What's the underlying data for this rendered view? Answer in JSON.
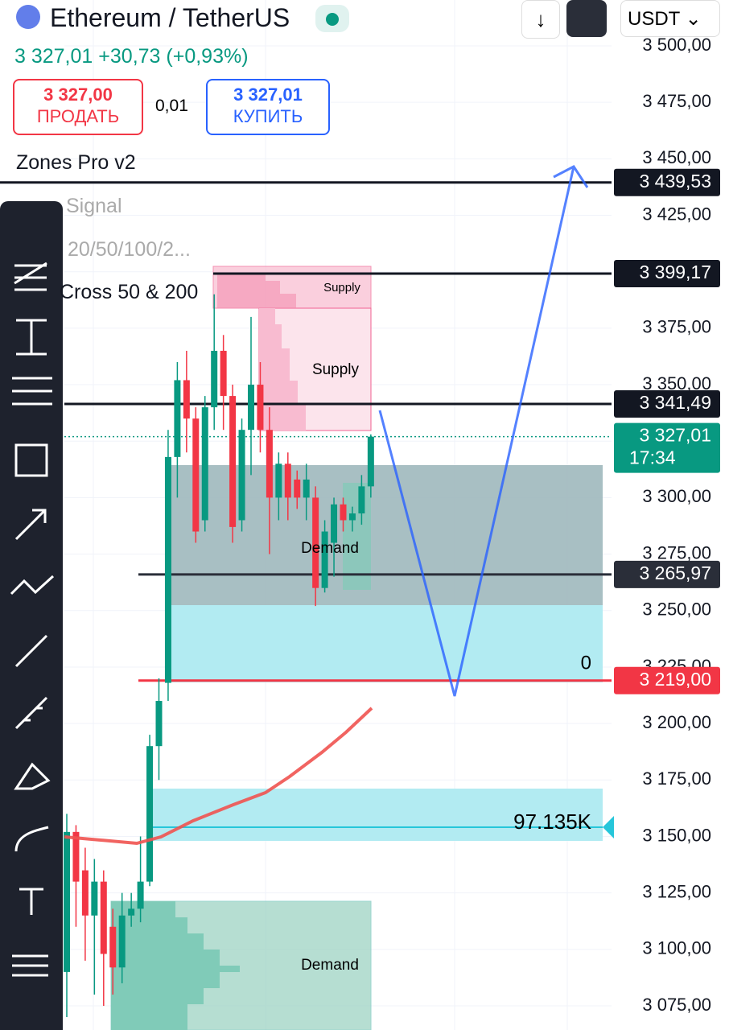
{
  "header": {
    "symbol": "Ethereum / TetherUS",
    "price": "3 327,01",
    "change": "+30,73 (+0,93%)",
    "currency": "USDT"
  },
  "trade": {
    "sell_price": "3 327,00",
    "sell_label": "ПРОДАТЬ",
    "spread": "0,01",
    "buy_price": "3 327,01",
    "buy_label": "КУПИТЬ"
  },
  "indicators": [
    "Zones Pro v2",
    "Signal",
    "20/50/100/2...",
    "Cross 50 & 200"
  ],
  "chart_data": {
    "type": "candlestick",
    "yticks": [
      {
        "value": 3500,
        "label": "3 500,00"
      },
      {
        "value": 3475,
        "label": "3 475,00"
      },
      {
        "value": 3450,
        "label": "3 450,00"
      },
      {
        "value": 3425,
        "label": "3 425,00"
      },
      {
        "value": 3400,
        "label": "3 400,00"
      },
      {
        "value": 3375,
        "label": "3 375,00"
      },
      {
        "value": 3350,
        "label": "3 350,00"
      },
      {
        "value": 3325,
        "label": "3 325,00"
      },
      {
        "value": 3300,
        "label": "3 300,00"
      },
      {
        "value": 3275,
        "label": "3 275,00"
      },
      {
        "value": 3250,
        "label": "3 250,00"
      },
      {
        "value": 3225,
        "label": "3 225,00"
      },
      {
        "value": 3200,
        "label": "3 200,00"
      },
      {
        "value": 3175,
        "label": "3 175,00"
      },
      {
        "value": 3150,
        "label": "3 150,00"
      },
      {
        "value": 3125,
        "label": "3 125,00"
      },
      {
        "value": 3100,
        "label": "3 100,00"
      },
      {
        "value": 3075,
        "label": "3 075,00"
      }
    ],
    "price_lines": [
      {
        "value": 3439.53,
        "label": "3 439,53",
        "color": "#131722"
      },
      {
        "value": 3399.17,
        "label": "3 399,17",
        "color": "#131722"
      },
      {
        "value": 3341.49,
        "label": "3 341,49",
        "color": "#131722"
      },
      {
        "value": 3327.01,
        "label": "3 327,01",
        "time": "17:34",
        "color": "#089981"
      },
      {
        "value": 3265.97,
        "label": "3 265,97",
        "color": "#2a2e39"
      },
      {
        "value": 3219,
        "label": "3 219,00",
        "color": "#f23645"
      }
    ],
    "up_color": "#089981",
    "down_color": "#f23645",
    "candles": [
      {
        "open": 3090,
        "high": 3160,
        "low": 3070,
        "close": 3152
      },
      {
        "open": 3152,
        "high": 3155,
        "low": 3110,
        "close": 3130
      },
      {
        "open": 3135,
        "high": 3145,
        "low": 3095,
        "close": 3115
      },
      {
        "open": 3115,
        "high": 3140,
        "low": 3080,
        "close": 3130
      },
      {
        "open": 3130,
        "high": 3135,
        "low": 3075,
        "close": 3098
      },
      {
        "open": 3110,
        "high": 3118,
        "low": 3080,
        "close": 3092
      },
      {
        "open": 3092,
        "high": 3125,
        "low": 3085,
        "close": 3115
      },
      {
        "open": 3115,
        "high": 3125,
        "low": 3110,
        "close": 3118
      },
      {
        "open": 3118,
        "high": 3150,
        "low": 3112,
        "close": 3130
      },
      {
        "open": 3130,
        "high": 3195,
        "low": 3128,
        "close": 3190
      },
      {
        "open": 3190,
        "high": 3220,
        "low": 3175,
        "close": 3210
      },
      {
        "open": 3218,
        "high": 3330,
        "low": 3210,
        "close": 3318
      },
      {
        "open": 3318,
        "high": 3360,
        "low": 3300,
        "close": 3352
      },
      {
        "open": 3352,
        "high": 3365,
        "low": 3320,
        "close": 3335
      },
      {
        "open": 3335,
        "high": 3340,
        "low": 3280,
        "close": 3285
      },
      {
        "open": 3290,
        "high": 3345,
        "low": 3285,
        "close": 3340
      },
      {
        "open": 3340,
        "high": 3390,
        "low": 3330,
        "close": 3365
      },
      {
        "open": 3365,
        "high": 3372,
        "low": 3330,
        "close": 3345
      },
      {
        "open": 3345,
        "high": 3350,
        "low": 3280,
        "close": 3287
      },
      {
        "open": 3290,
        "high": 3335,
        "low": 3285,
        "close": 3330
      },
      {
        "open": 3330,
        "high": 3380,
        "low": 3310,
        "close": 3350
      },
      {
        "open": 3350,
        "high": 3360,
        "low": 3320,
        "close": 3330
      },
      {
        "open": 3330,
        "high": 3340,
        "low": 3275,
        "close": 3300
      },
      {
        "open": 3300,
        "high": 3320,
        "low": 3290,
        "close": 3315
      },
      {
        "open": 3315,
        "high": 3320,
        "low": 3290,
        "close": 3300
      },
      {
        "open": 3308,
        "high": 3312,
        "low": 3295,
        "close": 3300
      },
      {
        "open": 3300,
        "high": 3315,
        "low": 3290,
        "close": 3308
      },
      {
        "open": 3300,
        "high": 3305,
        "low": 3252,
        "close": 3260
      },
      {
        "open": 3260,
        "high": 3290,
        "low": 3258,
        "close": 3285
      },
      {
        "open": 3280,
        "high": 3300,
        "low": 3265,
        "close": 3297
      },
      {
        "open": 3297,
        "high": 3300,
        "low": 3285,
        "close": 3290
      },
      {
        "open": 3290,
        "high": 3296,
        "low": 3285,
        "close": 3293
      },
      {
        "open": 3293,
        "high": 3310,
        "low": 3288,
        "close": 3305
      },
      {
        "open": 3305,
        "high": 3328,
        "low": 3300,
        "close": 3327
      }
    ],
    "annotations": {
      "supply_top": "Supply",
      "supply_mid": "Supply",
      "demand_mid": "Demand",
      "demand_low": "Demand",
      "zero": "0",
      "volume": "97.135K"
    }
  }
}
